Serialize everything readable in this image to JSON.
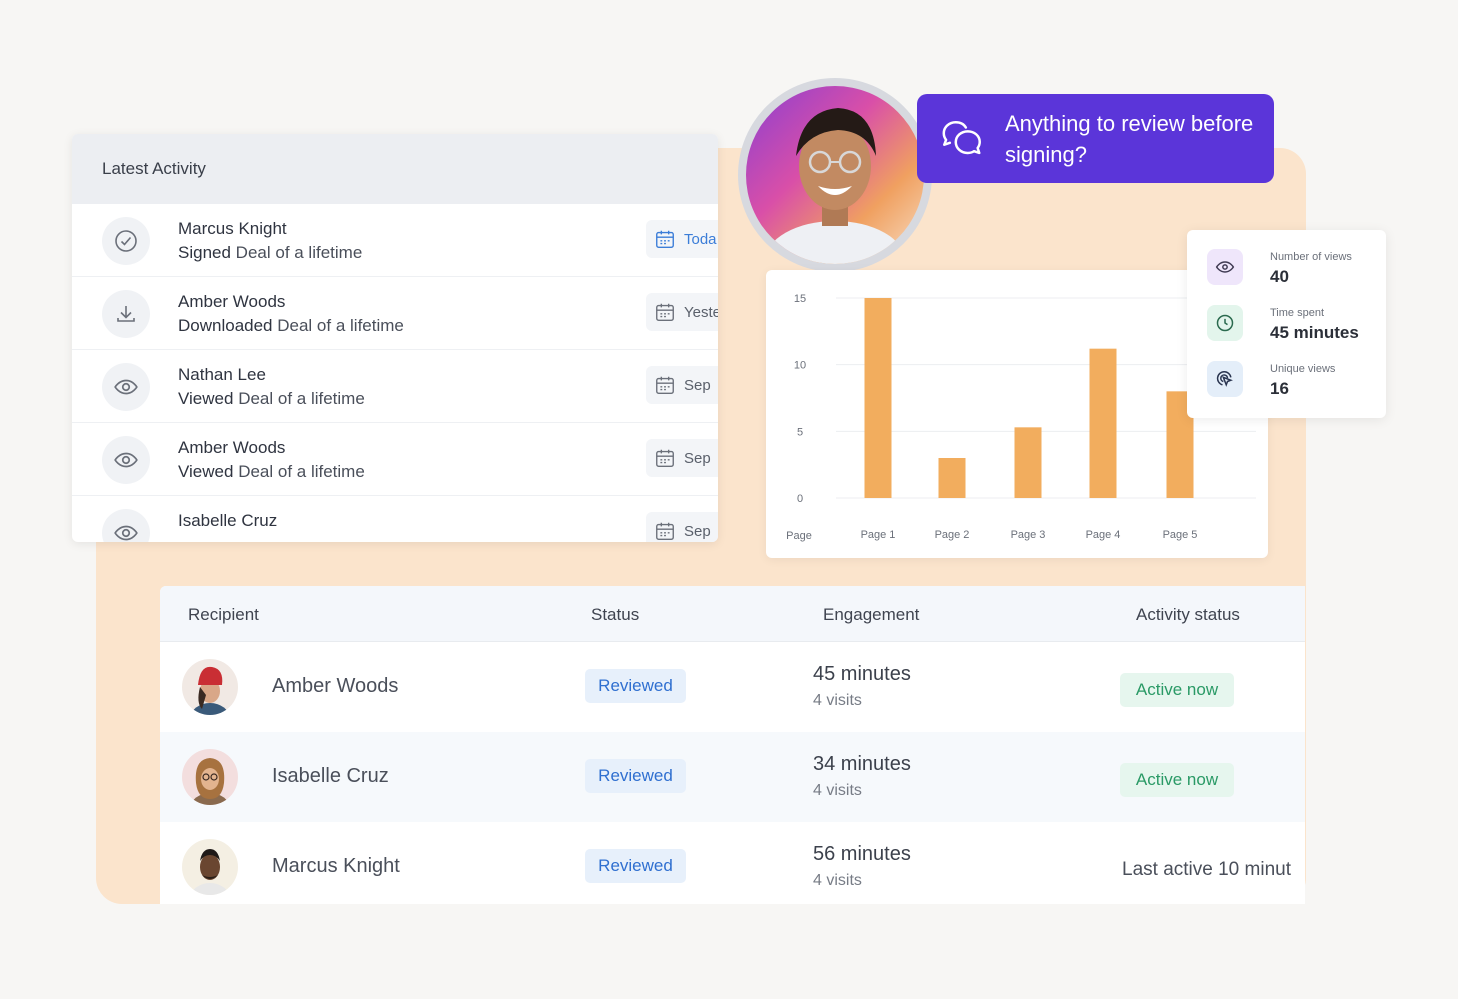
{
  "latest_activity": {
    "title": "Latest Activity",
    "items": [
      {
        "name": "Marcus Knight",
        "action": "Signed",
        "document": "Deal of a lifetime",
        "date": "Toda",
        "icon": "check-circle-icon"
      },
      {
        "name": "Amber Woods",
        "action": "Downloaded",
        "document": "Deal of a lifetime",
        "date": "Yeste",
        "icon": "download-icon"
      },
      {
        "name": "Nathan Lee",
        "action": "Viewed",
        "document": "Deal of a lifetime",
        "date": "Sep",
        "icon": "eye-icon"
      },
      {
        "name": "Amber Woods",
        "action": "Viewed",
        "document": "Deal of a lifetime",
        "date": "Sep",
        "icon": "eye-icon"
      },
      {
        "name": "Isabelle Cruz",
        "action": "",
        "document": "",
        "date": "Sep",
        "icon": "eye-icon"
      }
    ]
  },
  "chat": {
    "message": "Anything to review before signing?"
  },
  "chart_data": {
    "type": "bar",
    "x_axis_label": "Page",
    "categories": [
      "Page 1",
      "Page 2",
      "Page 3",
      "Page 4",
      "Page 5"
    ],
    "values": [
      15,
      3,
      5.3,
      11.2,
      8
    ],
    "ylim": [
      0,
      15
    ],
    "yticks": [
      0,
      5,
      10,
      15
    ],
    "grid": true,
    "bar_color": "#f2ad5e"
  },
  "stats": [
    {
      "label": "Number of views",
      "value": "40",
      "icon": "eye-icon",
      "bg": "#efe6fb",
      "color": "#6b3fd4"
    },
    {
      "label": "Time spent",
      "value": "45 minutes",
      "icon": "clock-icon",
      "bg": "#e3f5ec",
      "color": "#2a9a66"
    },
    {
      "label": "Unique views",
      "value": "16",
      "icon": "cursor-click-icon",
      "bg": "#e4eef9",
      "color": "#2f5fa8"
    }
  ],
  "recipients_table": {
    "headers": {
      "recipient": "Recipient",
      "status": "Status",
      "engagement": "Engagement",
      "activity": "Activity status"
    },
    "rows": [
      {
        "name": "Amber Woods",
        "status": "Reviewed",
        "engagement": "45 minutes",
        "visits": "4 visits",
        "activity": "Active now",
        "active": true
      },
      {
        "name": "Isabelle Cruz",
        "status": "Reviewed",
        "engagement": "34 minutes",
        "visits": "4 visits",
        "activity": "Active now",
        "active": true
      },
      {
        "name": "Marcus Knight",
        "status": "Reviewed",
        "engagement": "56 minutes",
        "visits": "4 visits",
        "activity": "Last active 10 minut",
        "active": false
      }
    ]
  },
  "colors": {
    "accent": "#5b35d9",
    "peach": "#fbe4cc",
    "link": "#3b7dd8",
    "success": "#2a9a66"
  }
}
